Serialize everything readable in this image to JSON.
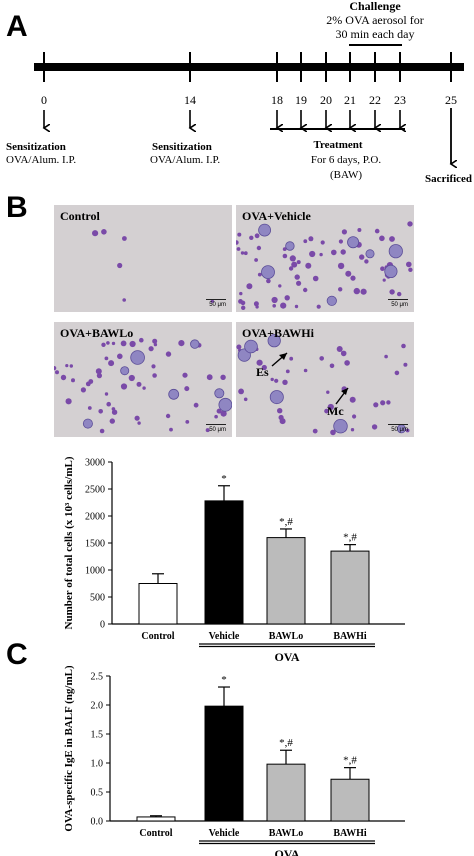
{
  "panel_a": {
    "letter": "A",
    "challenge_title": "Challenge",
    "challenge_line1": "2% OVA  aerosol for",
    "challenge_line2": "30  min  each day",
    "days": [
      "0",
      "14",
      "18",
      "19",
      "20",
      "21",
      "22",
      "23",
      "25"
    ],
    "sensitization1_title": "Sensitization",
    "sensitization1_detail": "OVA/Alum.  I.P.",
    "sensitization2_title": "Sensitization",
    "sensitization2_detail": "OVA/Alum.  I.P.",
    "treatment_title": "Treatment",
    "treatment_detail": "For 6 days, P.O.",
    "treatment_drug": "(BAW)",
    "sacrifice": "Sacrificed"
  },
  "panel_b": {
    "letter": "B",
    "images": [
      {
        "label": "Control",
        "scale": "50 μm"
      },
      {
        "label": "OVA+Vehicle",
        "scale": "50 μm"
      },
      {
        "label": "OVA+BAWLo",
        "scale": "50 μm"
      },
      {
        "label": "OVA+BAWHi",
        "scale": "50 μm",
        "annotations": [
          "Es",
          "Mc"
        ]
      }
    ]
  },
  "panel_c": {
    "letter": "C"
  },
  "chart_data": [
    {
      "type": "bar",
      "categories": [
        "Control",
        "Vehicle",
        "BAWLo",
        "BAWHi"
      ],
      "values": [
        750,
        2280,
        1600,
        1350
      ],
      "errors": [
        180,
        280,
        160,
        120
      ],
      "colors": [
        "#ffffff",
        "#000000",
        "#bbbbbb",
        "#bbbbbb"
      ],
      "significance": [
        "",
        "*",
        "*,#",
        "*,#"
      ],
      "ylabel": "Number of total cells (x 10³ cells/mL)",
      "ylim": [
        0,
        3000
      ],
      "yticks": [
        "0",
        "500",
        "1000",
        "1500",
        "2000",
        "2500",
        "3000"
      ],
      "group_label": "OVA"
    },
    {
      "type": "bar",
      "categories": [
        "Control",
        "Vehicle",
        "BAWLo",
        "BAWHi"
      ],
      "values": [
        0.07,
        1.98,
        0.98,
        0.72
      ],
      "errors": [
        0.02,
        0.33,
        0.24,
        0.2
      ],
      "colors": [
        "#ffffff",
        "#000000",
        "#bbbbbb",
        "#bbbbbb"
      ],
      "significance": [
        "",
        "*",
        "*,#",
        "*,#"
      ],
      "ylabel": "OVA-specific IgE in BALF (ng/mL)",
      "ylim": [
        0,
        2.5
      ],
      "yticks": [
        "0.0",
        "0.5",
        "1.0",
        "1.5",
        "2.0",
        "2.5"
      ],
      "group_label": "OVA"
    }
  ]
}
